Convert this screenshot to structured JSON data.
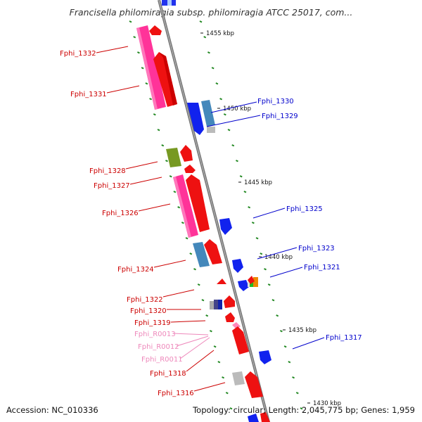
{
  "title": "Francisella philomiragia subsp. philomiragia ATCC 25017, com...",
  "accession": "Accession: NC_010336",
  "topology": "Topology: circular; Length: 2,045,775 bp; Genes: 1,959",
  "scale_labels": [
    "1455 kbp",
    "1450 kbp",
    "1445 kbp",
    "1440 kbp",
    "1435 kbp",
    "1430 kbp"
  ],
  "colors": {
    "forward_label": "#cc0000",
    "reverse_label": "#0000cc",
    "rna_label": "#ee88bb",
    "red": "#ee1111",
    "pink": "#ff3399",
    "blue": "#1122ee",
    "steel": "#4488bb",
    "olive": "#779922",
    "gray": "#bbbbbb",
    "green": "#22bb22",
    "orange": "#ee8800",
    "backbone": "#777777",
    "tick_green": "#228822"
  },
  "genes_left": [
    {
      "label": "Fphi_1332"
    },
    {
      "label": "Fphi_1331"
    },
    {
      "label": "Fphi_1328"
    },
    {
      "label": "Fphi_1327"
    },
    {
      "label": "Fphi_1326"
    },
    {
      "label": "Fphi_1324"
    },
    {
      "label": "Fphi_1322"
    },
    {
      "label": "Fphi_1320"
    },
    {
      "label": "Fphi_1319"
    },
    {
      "label": "Fphi_R0013"
    },
    {
      "label": "Fphi_R0012"
    },
    {
      "label": "Fphi_R0011"
    },
    {
      "label": "Fphi_1318"
    },
    {
      "label": "Fphi_1316"
    }
  ],
  "genes_right": [
    {
      "label": "Fphi_1330"
    },
    {
      "label": "Fphi_1329"
    },
    {
      "label": "Fphi_1325"
    },
    {
      "label": "Fphi_1323"
    },
    {
      "label": "Fphi_1321"
    },
    {
      "label": "Fphi_1317"
    }
  ]
}
